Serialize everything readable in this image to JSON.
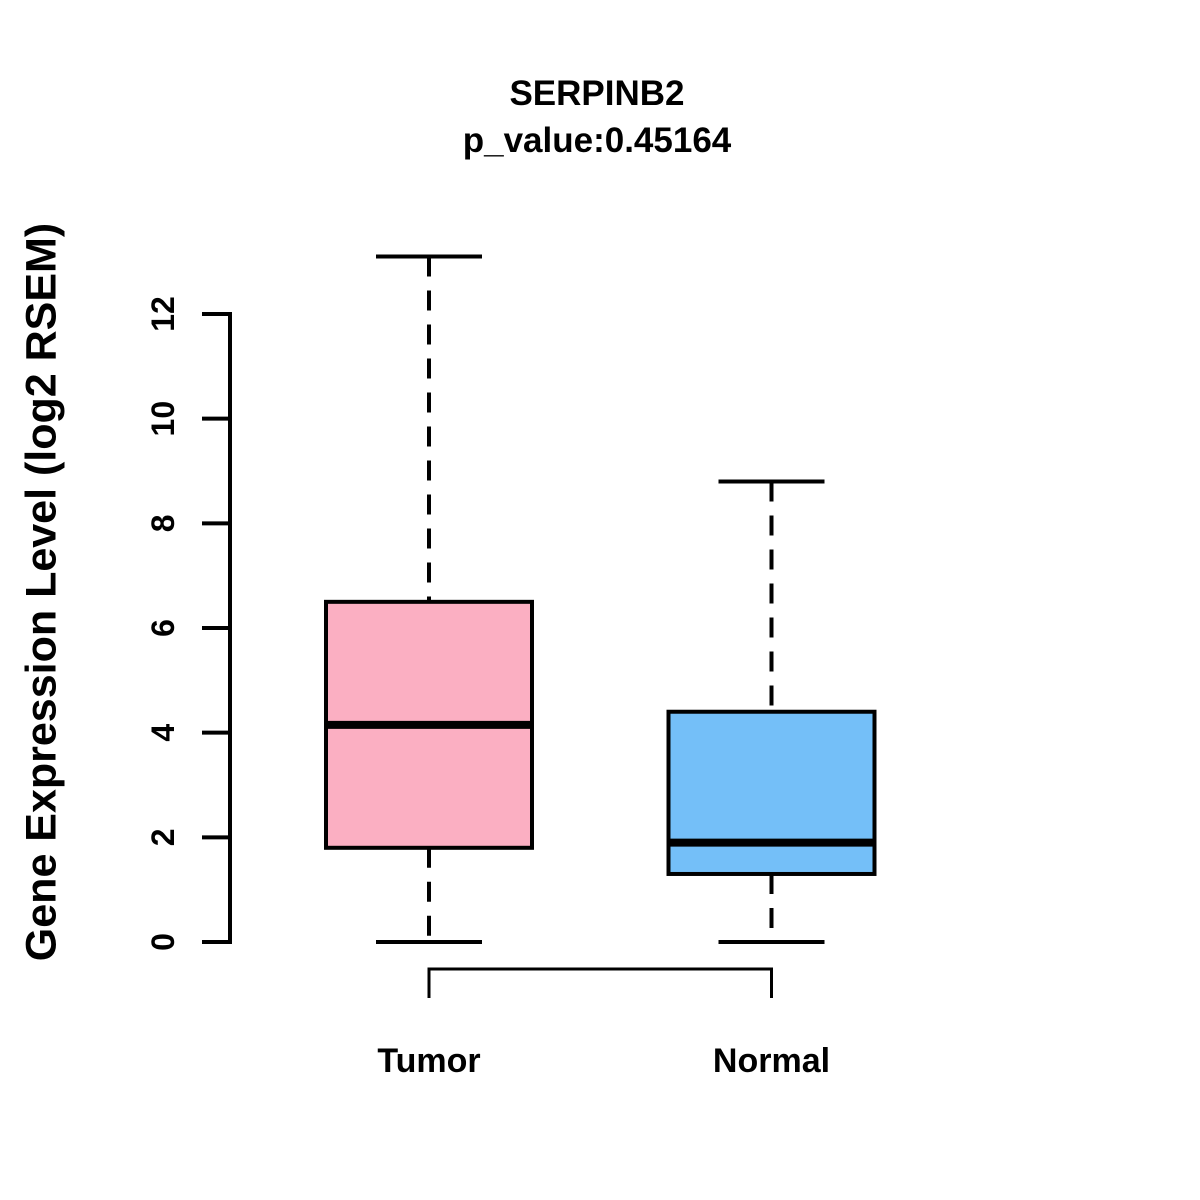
{
  "title": "SERPINB2",
  "subtitle": "p_value:0.45164",
  "p_value": "0.45164",
  "y_axis": {
    "label": "Gene Expression Level (log2 RSEM)",
    "ticks": [
      0,
      2,
      4,
      6,
      8,
      10,
      12
    ]
  },
  "chart_data": {
    "type": "boxplot",
    "title": "SERPINB2",
    "subtitle": "p_value:0.45164",
    "ylabel": "Gene Expression Level (log2 RSEM)",
    "ylim": [
      0,
      13.2
    ],
    "yticks": [
      0,
      2,
      4,
      6,
      8,
      10,
      12
    ],
    "grid": false,
    "categories": [
      "Tumor",
      "Normal"
    ],
    "series": [
      {
        "name": "Tumor",
        "fill_color": "#FBAFC2",
        "whisker_low": 0,
        "q1": 1.8,
        "median": 4.15,
        "q3": 6.5,
        "whisker_high": 13.1
      },
      {
        "name": "Normal",
        "fill_color": "#74BFF8",
        "whisker_low": 0,
        "q1": 1.3,
        "median": 1.9,
        "q3": 4.4,
        "whisker_high": 8.8
      }
    ],
    "comparison_bracket": {
      "between": [
        "Tumor",
        "Normal"
      ],
      "label": ""
    },
    "line_color": "#000000"
  }
}
